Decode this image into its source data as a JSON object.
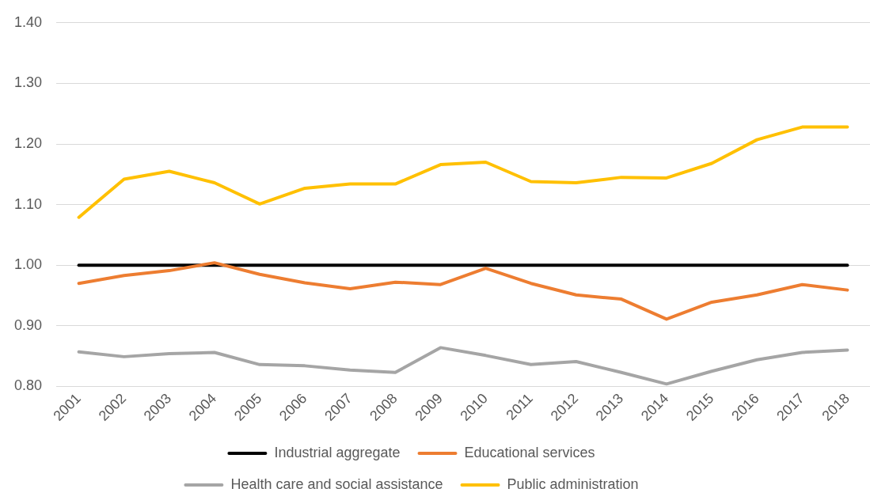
{
  "chart_data": {
    "type": "line",
    "categories": [
      "2001",
      "2002",
      "2003",
      "2004",
      "2005",
      "2006",
      "2007",
      "2008",
      "2009",
      "2010",
      "2011",
      "2012",
      "2013",
      "2014",
      "2015",
      "2016",
      "2017",
      "2018"
    ],
    "series": [
      {
        "name": "Industrial aggregate",
        "color": "#000000",
        "values": [
          1.0,
          1.0,
          1.0,
          1.0,
          1.0,
          1.0,
          1.0,
          1.0,
          1.0,
          1.0,
          1.0,
          1.0,
          1.0,
          1.0,
          1.0,
          1.0,
          1.0,
          1.0
        ]
      },
      {
        "name": "Educational services",
        "color": "#ed7d31",
        "values": [
          0.97,
          0.983,
          0.991,
          1.004,
          0.985,
          0.971,
          0.961,
          0.972,
          0.968,
          0.995,
          0.97,
          0.951,
          0.944,
          0.911,
          0.939,
          0.951,
          0.968,
          0.959
        ]
      },
      {
        "name": "Health care and social assistance",
        "color": "#a5a5a5",
        "values": [
          0.857,
          0.849,
          0.854,
          0.856,
          0.836,
          0.834,
          0.827,
          0.823,
          0.864,
          0.851,
          0.836,
          0.841,
          0.823,
          0.804,
          0.825,
          0.844,
          0.856,
          0.86
        ]
      },
      {
        "name": "Public administration",
        "color": "#ffc000",
        "values": [
          1.079,
          1.142,
          1.155,
          1.136,
          1.101,
          1.127,
          1.134,
          1.134,
          1.166,
          1.17,
          1.138,
          1.136,
          1.145,
          1.144,
          1.168,
          1.207,
          1.228,
          1.228
        ]
      }
    ],
    "ylim": [
      0.8,
      1.4
    ],
    "yticks": [
      {
        "value": 0.8,
        "label": "0.80"
      },
      {
        "value": 0.9,
        "label": "0.90"
      },
      {
        "value": 1.0,
        "label": "1.00"
      },
      {
        "value": 1.1,
        "label": "1.10"
      },
      {
        "value": 1.2,
        "label": "1.20"
      },
      {
        "value": 1.3,
        "label": "1.30"
      },
      {
        "value": 1.4,
        "label": "1.40"
      }
    ],
    "grid": "y",
    "legend": "bottom"
  }
}
